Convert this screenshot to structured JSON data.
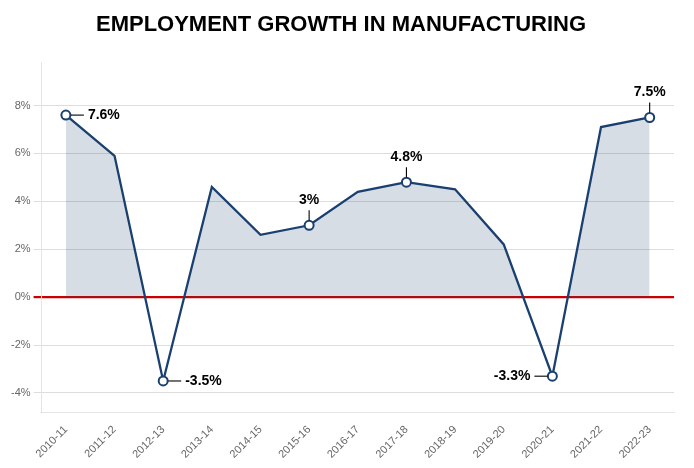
{
  "chart_data": {
    "type": "line",
    "title": "EMPLOYMENT GROWTH IN MANUFACTURING",
    "categories": [
      "2010-11",
      "2011-12",
      "2012-13",
      "2013-14",
      "2014-15",
      "2015-16",
      "2016-17",
      "2017-18",
      "2018-19",
      "2019-20",
      "2020-21",
      "2021-22",
      "2022-23"
    ],
    "values": [
      7.6,
      5.9,
      -3.5,
      4.6,
      2.6,
      3.0,
      4.4,
      4.8,
      4.5,
      2.2,
      -3.3,
      7.1,
      7.5
    ],
    "color": "#1a4070",
    "ylim": [
      -4.8,
      9.8
    ],
    "yticks": [
      {
        "value": -4,
        "label": "-4%"
      },
      {
        "value": -2,
        "label": "-2%"
      },
      {
        "value": 0,
        "label": "0%"
      },
      {
        "value": 2,
        "label": "2%"
      },
      {
        "value": 4,
        "label": "4%"
      },
      {
        "value": 6,
        "label": "6%"
      },
      {
        "value": 8,
        "label": "8%"
      }
    ],
    "grid": true,
    "annotations": [
      {
        "x": "2010-11",
        "y": 7.6,
        "text": "7.6%"
      },
      {
        "x": "2012-13",
        "y": -3.5,
        "text": "-3.5%"
      },
      {
        "x": "2015-16",
        "y": 3.0,
        "text": "3%"
      },
      {
        "x": "2017-18",
        "y": 4.8,
        "text": "4.8%"
      },
      {
        "x": "2020-21",
        "y": -3.3,
        "text": "-3.3%"
      },
      {
        "x": "2022-23",
        "y": 7.5,
        "text": "7.5%"
      }
    ]
  }
}
